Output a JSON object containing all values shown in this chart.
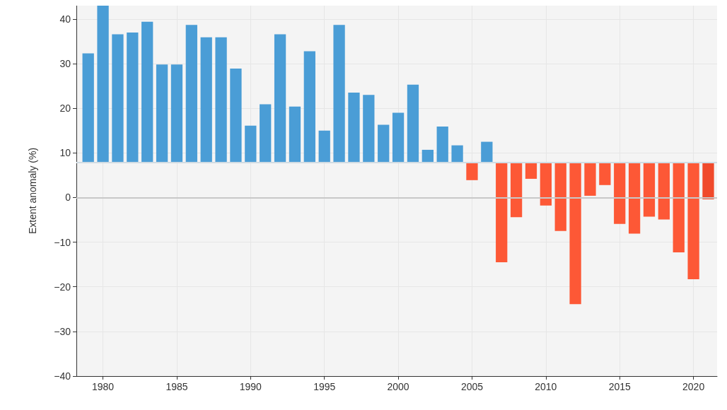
{
  "chart_data": {
    "type": "bar",
    "ylabel": "Extent anomaly (%)",
    "x": [
      1979,
      1980,
      1981,
      1982,
      1983,
      1984,
      1985,
      1986,
      1987,
      1988,
      1989,
      1990,
      1991,
      1992,
      1993,
      1994,
      1995,
      1996,
      1997,
      1998,
      1999,
      2000,
      2001,
      2002,
      2003,
      2004,
      2005,
      2006,
      2007,
      2008,
      2009,
      2010,
      2011,
      2012,
      2013,
      2014,
      2015,
      2016,
      2017,
      2018,
      2019,
      2020,
      2021
    ],
    "base": [
      7.8,
      7.8,
      7.8,
      7.8,
      7.8,
      7.8,
      7.8,
      7.8,
      7.8,
      7.8,
      7.8,
      7.8,
      7.8,
      7.8,
      7.8,
      7.8,
      7.8,
      7.8,
      7.8,
      7.8,
      7.8,
      7.8,
      7.8,
      7.8,
      7.8,
      7.8,
      7.8,
      7.8,
      7.8,
      7.8,
      7.8,
      7.8,
      7.8,
      7.8,
      7.8,
      7.8,
      7.8,
      7.8,
      7.8,
      7.8,
      7.8,
      7.8,
      7.8
    ],
    "values": [
      24.5,
      35.2,
      28.8,
      29.2,
      31.6,
      22.0,
      22.0,
      30.9,
      28.1,
      28.1,
      21.1,
      8.3,
      13.1,
      28.8,
      12.6,
      25.0,
      7.2,
      30.9,
      15.7,
      15.2,
      8.5,
      11.2,
      17.5,
      2.9,
      8.1,
      3.9,
      -3.9,
      4.7,
      -22.3,
      -12.2,
      -3.6,
      -9.6,
      -15.3,
      -31.7,
      -7.4,
      -5.0,
      -13.7,
      -15.9,
      -12.1,
      -12.7,
      -20.1,
      -26.1,
      -8.2
    ],
    "colors": [
      "#4a9dd6",
      "#4a9dd6",
      "#4a9dd6",
      "#4a9dd6",
      "#4a9dd6",
      "#4a9dd6",
      "#4a9dd6",
      "#4a9dd6",
      "#4a9dd6",
      "#4a9dd6",
      "#4a9dd6",
      "#4a9dd6",
      "#4a9dd6",
      "#4a9dd6",
      "#4a9dd6",
      "#4a9dd6",
      "#4a9dd6",
      "#4a9dd6",
      "#4a9dd6",
      "#4a9dd6",
      "#4a9dd6",
      "#4a9dd6",
      "#4a9dd6",
      "#4a9dd6",
      "#4a9dd6",
      "#4a9dd6",
      "#fd5836",
      "#4a9dd6",
      "#fd5836",
      "#fd5836",
      "#fd5836",
      "#fd5836",
      "#fd5836",
      "#fd5836",
      "#fd5836",
      "#fd5836",
      "#fd5836",
      "#fd5836",
      "#fd5836",
      "#fd5836",
      "#fd5836",
      "#fd5836",
      "#f04a2c"
    ],
    "xlim": [
      1978.2,
      2021.6
    ],
    "xticks": [
      1980,
      1985,
      1990,
      1995,
      2000,
      2005,
      2010,
      2015,
      2020
    ],
    "ylim": [
      -40,
      43
    ],
    "yticks": [
      -40,
      -30,
      -20,
      -10,
      0,
      10,
      20,
      30,
      40
    ],
    "ref_lines": [
      {
        "axis": "y",
        "value": 0,
        "color": "#c8c8c8"
      },
      {
        "axis": "y",
        "value": 7.8,
        "color": "#d0dbe3"
      }
    ],
    "grid": true
  }
}
